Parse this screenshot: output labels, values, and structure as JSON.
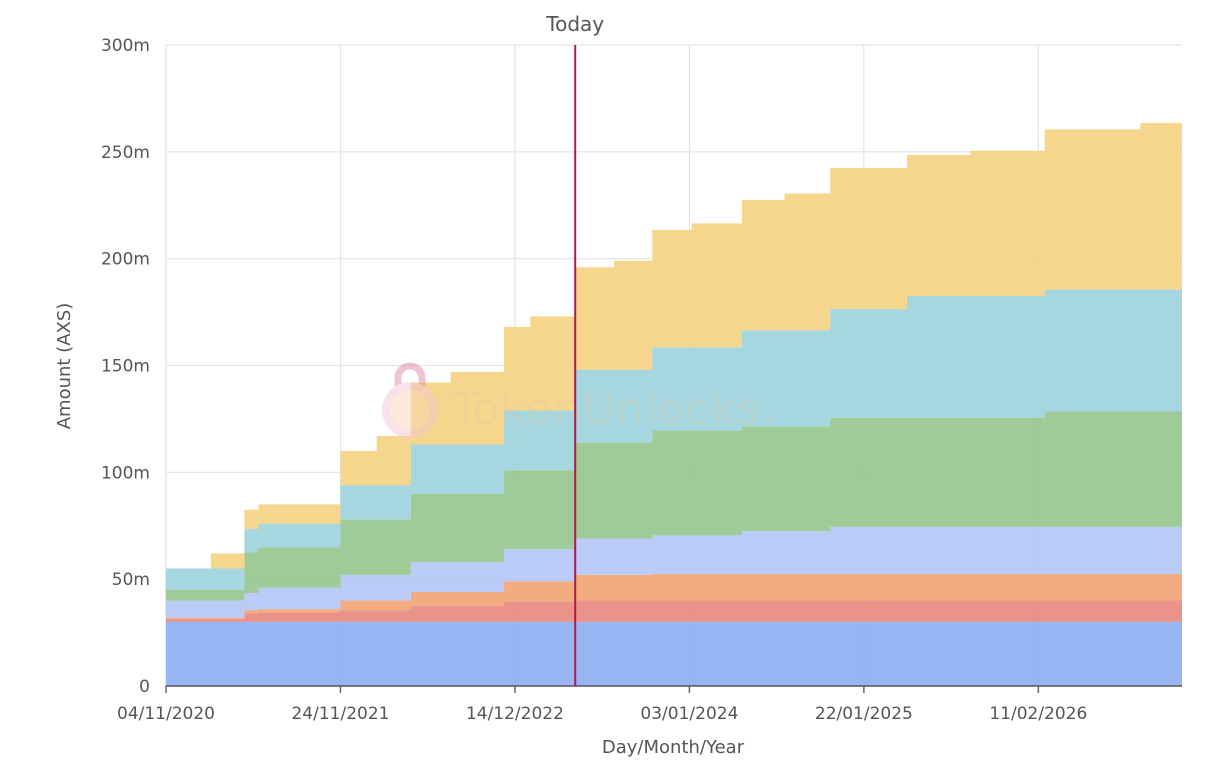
{
  "chart_data": {
    "type": "area",
    "stacked": true,
    "step": true,
    "title": "",
    "xlabel": "Day/Month/Year",
    "ylabel": "Amount (AXS)",
    "ylim": [
      0,
      300
    ],
    "y_unit": "m",
    "y_ticks": [
      "0",
      "50m",
      "100m",
      "150m",
      "200m",
      "250m",
      "300m"
    ],
    "x_ticks": [
      {
        "date": "2020-11-04",
        "label": "04/11/2020"
      },
      {
        "date": "2021-11-24",
        "label": "24/11/2021"
      },
      {
        "date": "2022-12-14",
        "label": "14/12/2022"
      },
      {
        "date": "2024-01-03",
        "label": "03/01/2024"
      },
      {
        "date": "2025-01-22",
        "label": "22/01/2025"
      },
      {
        "date": "2026-02-11",
        "label": "11/02/2026"
      }
    ],
    "xlim": [
      "2020-11-04",
      "2026-12-25"
    ],
    "today": {
      "date": "2023-04-26",
      "label": "Today",
      "color": "#b5174b"
    },
    "grid": true,
    "x": [
      "2020-11-04",
      "2021-02-11",
      "2021-03-14",
      "2021-04-26",
      "2021-05-27",
      "2021-11-24",
      "2022-02-12",
      "2022-04-28",
      "2022-07-25",
      "2022-11-20",
      "2023-01-17",
      "2023-04-26",
      "2023-07-21",
      "2023-10-13",
      "2024-01-08",
      "2024-04-28",
      "2024-07-31",
      "2024-11-09",
      "2025-04-27",
      "2025-09-14",
      "2025-11-07",
      "2026-02-25",
      "2026-09-24",
      "2026-12-25"
    ],
    "series": [
      {
        "color": "#8eaef2",
        "values": [
          30,
          30,
          30,
          30,
          30,
          30,
          30,
          30,
          30,
          30,
          30,
          30,
          30,
          30,
          30,
          30,
          30,
          30,
          30,
          30,
          30,
          30,
          30,
          30
        ]
      },
      {
        "color": "#e88a80",
        "values": [
          1.5,
          1.5,
          1.5,
          4,
          4.5,
          5.5,
          5.5,
          7.5,
          7.5,
          9.5,
          9.5,
          10,
          10,
          10,
          10,
          10,
          10,
          10,
          10,
          10,
          10,
          10,
          10,
          10
        ]
      },
      {
        "color": "#f2a574",
        "values": [
          0.5,
          0.5,
          0.5,
          1.5,
          1.5,
          4.5,
          4.5,
          6.5,
          6.5,
          9.5,
          9.5,
          12,
          12,
          12.5,
          12.5,
          12.5,
          12.5,
          12.5,
          12.5,
          12.5,
          12.5,
          12.5,
          12.5,
          12.5
        ]
      },
      {
        "color": "#b3c7f5",
        "values": [
          8,
          8,
          8,
          8,
          10,
          12,
          12,
          14,
          14,
          15,
          15,
          17,
          17,
          18,
          18,
          20,
          20,
          22,
          22,
          22,
          22,
          22,
          22,
          22
        ]
      },
      {
        "color": "#96c78f",
        "values": [
          5,
          5,
          5,
          19,
          19,
          26,
          26,
          32,
          32,
          37,
          37,
          45,
          45,
          49,
          49,
          49,
          49,
          51,
          51,
          51,
          51,
          54,
          54,
          54
        ]
      },
      {
        "color": "#9ed3dc",
        "values": [
          10,
          10,
          10,
          11,
          11,
          16,
          16,
          23,
          23,
          28,
          28,
          34,
          34,
          39,
          39,
          45,
          45,
          51,
          57,
          57,
          57,
          57,
          57,
          57
        ]
      },
      {
        "color": "#f5d282",
        "values": [
          0,
          7,
          7,
          9,
          9,
          16,
          23,
          29,
          34,
          39,
          44,
          48,
          51,
          55,
          58,
          61,
          64,
          66,
          66,
          68,
          68,
          75,
          78,
          78
        ]
      }
    ]
  },
  "watermark": {
    "text": "TokenUnlocks."
  }
}
